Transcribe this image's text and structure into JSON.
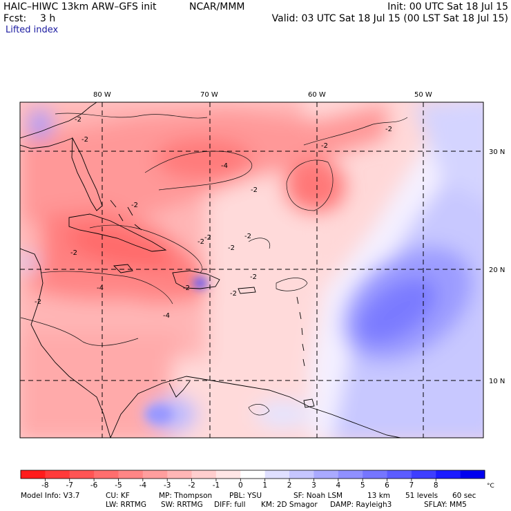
{
  "header": {
    "model_line": "HAIC–HIWC 13km ARW–GFS init",
    "org": "NCAR/MMM",
    "init": "Init: 00 UTC Sat 18 Jul 15",
    "fcst_label": "Fcst:",
    "fcst_value": "3 h",
    "valid": "Valid: 03 UTC Sat 18 Jul 15 (00 LST Sat 18 Jul 15)",
    "field": "Lifted index"
  },
  "map": {
    "lon_labels": [
      "80 W",
      "70 W",
      "60 W",
      "50 W"
    ],
    "lat_labels": [
      "30 N",
      "20 N",
      "10 N"
    ],
    "contour_labels": [
      "-2",
      "-2",
      "-2",
      "-2",
      "-4",
      "-2",
      "-2",
      "-2",
      "-2",
      "-2",
      "-2",
      "-4",
      "-2",
      "-2",
      "-2",
      "-2",
      "-2",
      "-4"
    ]
  },
  "colorbar": {
    "ticks": [
      "-8",
      "-7",
      "-6",
      "-5",
      "-4",
      "-3",
      "-2",
      "-1",
      "0",
      "1",
      "2",
      "3",
      "4",
      "5",
      "6",
      "7",
      "8"
    ],
    "unit": "°C",
    "colors": [
      "#ff1c1c",
      "#ff3a3a",
      "#ff5454",
      "#ff6e6e",
      "#ff8686",
      "#ff9e9e",
      "#ffb6b6",
      "#ffcece",
      "#ffe6e6",
      "#ffffff",
      "#e0e0ff",
      "#c6c6ff",
      "#aaaaff",
      "#9090ff",
      "#7676ff",
      "#5c5cff",
      "#3e3eff",
      "#1c1cff",
      "#0000f0"
    ]
  },
  "footer": {
    "line1": [
      "Model Info: V3.7",
      "CU: KF",
      "MP: Thompson",
      "PBL: YSU",
      "SF: Noah LSM",
      "13 km",
      "51 levels",
      "60 sec"
    ],
    "line2": [
      "LW: RRTMG",
      "SW: RRTMG",
      "DIFF: full",
      "KM: 2D Smagor",
      "DAMP: Rayleigh3",
      "SFLAY: MM5"
    ]
  }
}
